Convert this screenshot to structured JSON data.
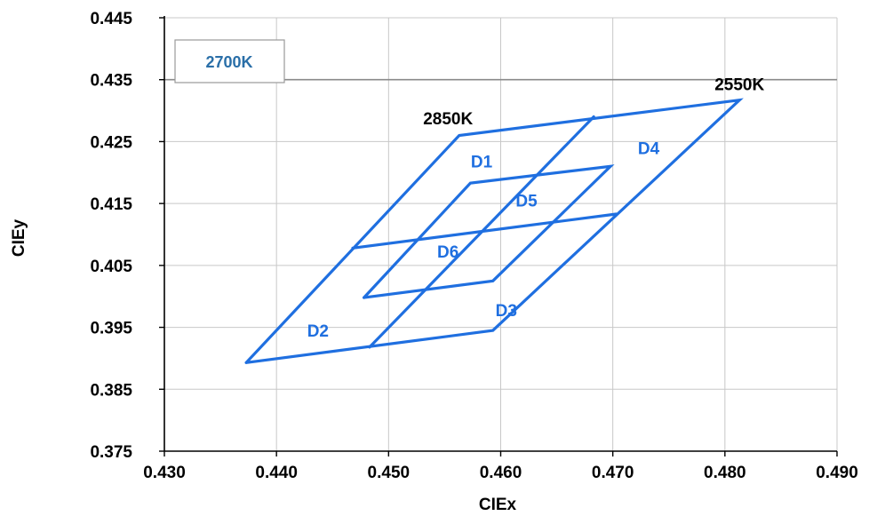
{
  "chart_data": {
    "type": "line",
    "xlabel": "CIEx",
    "ylabel": "CIEy",
    "xlim": [
      0.43,
      0.49
    ],
    "ylim": [
      0.375,
      0.445
    ],
    "x_ticks": [
      "0.430",
      "0.440",
      "0.450",
      "0.460",
      "0.470",
      "0.480",
      "0.490"
    ],
    "y_ticks": [
      "0.445",
      "0.435",
      "0.425",
      "0.415",
      "0.405",
      "0.395",
      "0.385",
      "0.375"
    ],
    "grid": true,
    "reference_lines": [
      {
        "y": 0.435
      }
    ],
    "legend_box": {
      "label": "2700K",
      "placement": "top-left"
    },
    "series": [
      {
        "x": [
          0.4373,
          0.4563,
          0.4813,
          0.4593,
          0.4373
        ],
        "y": [
          0.3893,
          0.426,
          0.4317,
          0.3945,
          0.3893
        ]
      },
      {
        "x": [
          0.4468,
          0.4703
        ],
        "y": [
          0.4078,
          0.4133
        ]
      },
      {
        "x": [
          0.4483,
          0.4683
        ],
        "y": [
          0.3918,
          0.429
        ]
      },
      {
        "x": [
          0.4478,
          0.4573,
          0.4698,
          0.4593,
          0.4478
        ],
        "y": [
          0.3998,
          0.4183,
          0.421,
          0.4025,
          0.3998
        ]
      }
    ],
    "annotations": [
      {
        "text": "2850K",
        "x": 0.4553,
        "y": 0.4278
      },
      {
        "text": "2550K",
        "x": 0.4813,
        "y": 0.4333
      },
      {
        "text": "D1",
        "x": 0.4583,
        "y": 0.4208
      },
      {
        "text": "D4",
        "x": 0.4732,
        "y": 0.423
      },
      {
        "text": "D5",
        "x": 0.4623,
        "y": 0.4145
      },
      {
        "text": "D6",
        "x": 0.4553,
        "y": 0.4063
      },
      {
        "text": "D3",
        "x": 0.4605,
        "y": 0.3968
      },
      {
        "text": "D2",
        "x": 0.4437,
        "y": 0.3935
      }
    ],
    "colors": {
      "series": "#1f6fe0",
      "annotation_region": "#1f6fe0",
      "annotation_cct": "#000000",
      "legend_text": "#2a6fa8"
    }
  }
}
